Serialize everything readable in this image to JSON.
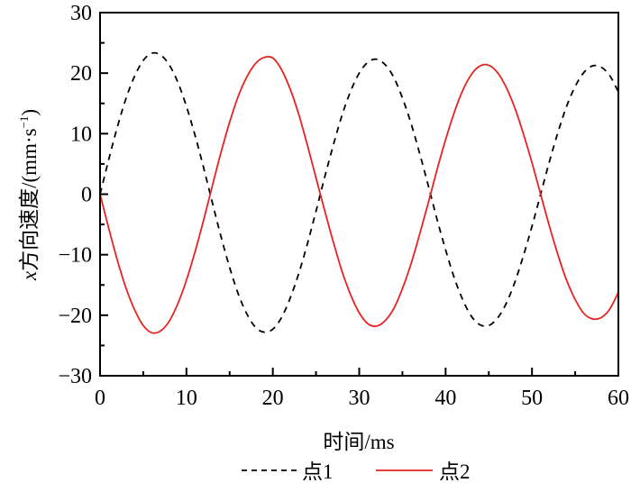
{
  "chart_data": {
    "type": "line",
    "xlabel": "时间/ms",
    "ylabel_var": "x",
    "ylabel_rest": "方向速度/(mm·s",
    "ylabel_sup": "−1",
    "ylabel_close": ")",
    "xlim": [
      0,
      60
    ],
    "ylim": [
      -30,
      30
    ],
    "xticks": [
      0,
      10,
      20,
      30,
      40,
      50,
      60
    ],
    "yticks": [
      30,
      20,
      10,
      0,
      -10,
      -20,
      -30
    ],
    "ytick_labels": [
      "30",
      "20",
      "10",
      "0",
      "−10",
      "−20",
      "−30"
    ],
    "grid": false,
    "legend_position": "bottom",
    "x": [
      0,
      1,
      2,
      3,
      4,
      5,
      6,
      7,
      8,
      9,
      10,
      11,
      12,
      13,
      14,
      15,
      16,
      17,
      18,
      19,
      20,
      21,
      22,
      23,
      24,
      25,
      26,
      27,
      28,
      29,
      30,
      31,
      32,
      33,
      34,
      35,
      36,
      37,
      38,
      39,
      40,
      41,
      42,
      43,
      44,
      45,
      46,
      47,
      48,
      49,
      50,
      51,
      52,
      53,
      54,
      55,
      56,
      57,
      58,
      59,
      60
    ],
    "series": [
      {
        "name": "点1",
        "color": "#000000",
        "dash": true,
        "values": [
          0,
          5.7,
          11.1,
          15.8,
          19.5,
          22.1,
          23.3,
          23.0,
          21.4,
          18.5,
          14.5,
          9.7,
          4.3,
          -1.4,
          -7.0,
          -12.1,
          -16.5,
          -19.8,
          -22.0,
          -22.8,
          -22.3,
          -20.4,
          -17.2,
          -13.1,
          -8.2,
          -2.8,
          2.8,
          8.1,
          13.0,
          17.0,
          20.0,
          21.8,
          22.3,
          21.4,
          19.3,
          15.9,
          11.7,
          6.7,
          1.4,
          -4.1,
          -9.2,
          -13.8,
          -17.5,
          -20.2,
          -21.6,
          -21.7,
          -20.5,
          -18.1,
          -14.6,
          -10.2,
          -5.3,
          0,
          5.3,
          10.2,
          14.5,
          17.8,
          20.1,
          21.2,
          21.0,
          19.6,
          16.9
        ]
      },
      {
        "name": "点2",
        "color": "#e8231f",
        "dash": false,
        "values": [
          0,
          -5.6,
          -10.9,
          -15.5,
          -19.1,
          -21.7,
          -22.9,
          -22.6,
          -21.0,
          -18.1,
          -14.2,
          -9.5,
          -4.2,
          1.4,
          6.9,
          11.9,
          16.2,
          19.4,
          21.6,
          22.6,
          22.5,
          20.6,
          17.4,
          13.2,
          8.1,
          2.7,
          -2.7,
          -7.9,
          -12.7,
          -16.6,
          -19.6,
          -21.4,
          -21.8,
          -20.9,
          -18.9,
          -15.6,
          -11.5,
          -6.6,
          -1.4,
          4.0,
          9.0,
          13.5,
          17.2,
          19.8,
          21.2,
          21.3,
          20.1,
          17.7,
          14.3,
          10.0,
          5.2,
          0,
          -5.2,
          -10.0,
          -14.2,
          -17.4,
          -19.7,
          -20.6,
          -20.4,
          -19.0,
          -16.2
        ]
      }
    ]
  }
}
